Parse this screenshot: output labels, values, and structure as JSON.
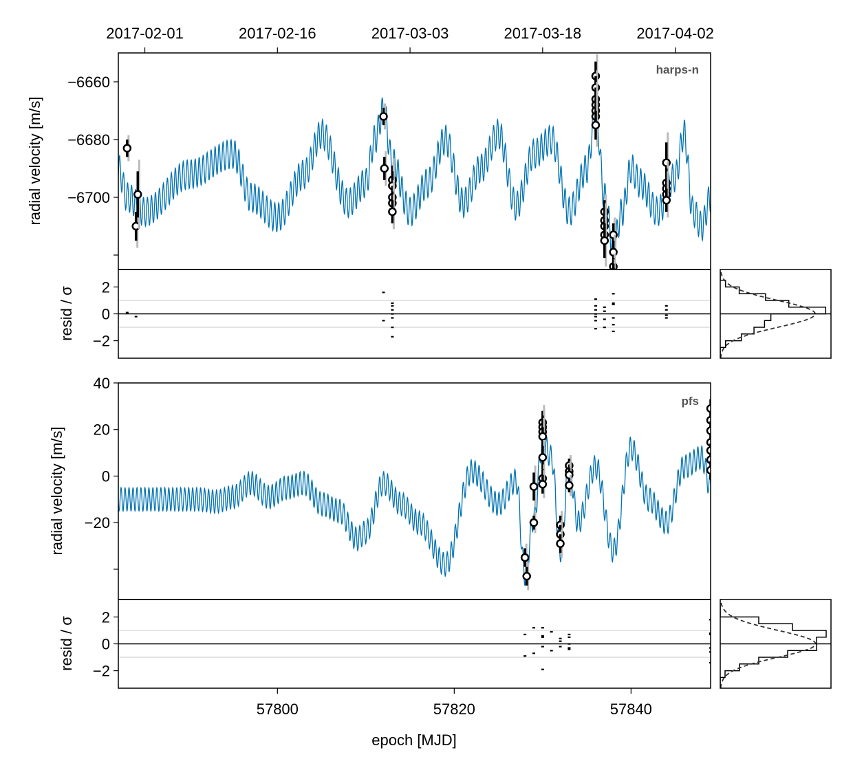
{
  "colors": {
    "model": "#0072B2",
    "data_edge": "#000000",
    "data_fill": "#ffffff",
    "errorbar_jitter": "#bbbbbb",
    "gridline": "#c8c8c8",
    "hist_curve": "#333333"
  },
  "chart_data": [
    {
      "type": "line",
      "panel": "rv-harps-n",
      "instrument": "harps-n",
      "ylabel": "radial velocity [m/s]",
      "xlim": [
        57782,
        57849
      ],
      "ylim": [
        -6725,
        -6650
      ],
      "yticks": [
        -6660,
        -6680,
        -6700
      ],
      "top_axis_dates": [
        "2017-02-01",
        "2017-02-16",
        "2017-03-03",
        "2017-03-18",
        "2017-04-02"
      ],
      "top_axis_mjd": [
        57785,
        57800,
        57815,
        57830,
        57845
      ],
      "model": {
        "baseline": -6694,
        "keypoints_x": [
          57782,
          57783,
          57785,
          57790,
          57795,
          57797,
          57800,
          57803,
          57805,
          57808,
          57810,
          57811,
          57812,
          57813,
          57815,
          57817,
          57819,
          57821,
          57823,
          57825,
          57827,
          57829,
          57831,
          57833,
          57835,
          57836,
          57837,
          57838,
          57839,
          57840,
          57841,
          57843,
          57845,
          57846,
          57847,
          57848,
          57849
        ],
        "keypoints_y": [
          -6690,
          -6700,
          -6705,
          -6692,
          -6685,
          -6700,
          -6707,
          -6692,
          -6678,
          -6702,
          -6695,
          -6680,
          -6670,
          -6688,
          -6705,
          -6695,
          -6680,
          -6702,
          -6690,
          -6678,
          -6703,
          -6685,
          -6680,
          -6705,
          -6690,
          -6670,
          -6700,
          -6717,
          -6705,
          -6690,
          -6695,
          -6705,
          -6693,
          -6678,
          -6705,
          -6710,
          -6700
        ],
        "osc_amplitude": 5,
        "osc_period": 0.45
      },
      "points": [
        {
          "x": 57783,
          "y": -6683,
          "err": 3
        },
        {
          "x": 57784,
          "y": -6710,
          "err": 5
        },
        {
          "x": 57784.2,
          "y": -6699,
          "err": 8
        },
        {
          "x": 57812,
          "y": -6672,
          "err": 3
        },
        {
          "x": 57812.1,
          "y": -6690,
          "err": 4
        },
        {
          "x": 57813,
          "y": -6694,
          "err": 5
        },
        {
          "x": 57813,
          "y": -6696,
          "err": 5
        },
        {
          "x": 57813,
          "y": -6700,
          "err": 4
        },
        {
          "x": 57813,
          "y": -6702,
          "err": 4
        },
        {
          "x": 57813,
          "y": -6705,
          "err": 4
        },
        {
          "x": 57836,
          "y": -6658,
          "err": 5
        },
        {
          "x": 57836,
          "y": -6662,
          "err": 4
        },
        {
          "x": 57836,
          "y": -6666,
          "err": 4
        },
        {
          "x": 57836,
          "y": -6668,
          "err": 4
        },
        {
          "x": 57836,
          "y": -6670,
          "err": 4
        },
        {
          "x": 57836,
          "y": -6672,
          "err": 4
        },
        {
          "x": 57836,
          "y": -6675,
          "err": 5
        },
        {
          "x": 57837,
          "y": -6705,
          "err": 4
        },
        {
          "x": 57837,
          "y": -6708,
          "err": 4
        },
        {
          "x": 57837,
          "y": -6710,
          "err": 4
        },
        {
          "x": 57837,
          "y": -6713,
          "err": 5
        },
        {
          "x": 57837,
          "y": -6715,
          "err": 6
        },
        {
          "x": 57838,
          "y": -6713,
          "err": 4
        },
        {
          "x": 57838,
          "y": -6719,
          "err": 4
        },
        {
          "x": 57838,
          "y": -6724,
          "err": 3
        },
        {
          "x": 57838,
          "y": -6726,
          "err": 3
        },
        {
          "x": 57844,
          "y": -6688,
          "err": 7
        },
        {
          "x": 57844,
          "y": -6695,
          "err": 5
        },
        {
          "x": 57844,
          "y": -6697,
          "err": 4
        },
        {
          "x": 57844,
          "y": -6699,
          "err": 4
        },
        {
          "x": 57844,
          "y": -6701,
          "err": 4
        }
      ]
    },
    {
      "type": "scatter",
      "panel": "resid-harps-n",
      "ylabel": "resid / σ",
      "xlim": [
        57782,
        57849
      ],
      "ylim": [
        -3.3,
        3.3
      ],
      "yticks": [
        2,
        0,
        -2
      ],
      "gridlines": [
        1,
        -1
      ],
      "points": [
        {
          "x": 57783,
          "y": 0.1
        },
        {
          "x": 57784,
          "y": -0.2
        },
        {
          "x": 57812,
          "y": 1.6
        },
        {
          "x": 57812,
          "y": -0.5
        },
        {
          "x": 57813,
          "y": 0.8
        },
        {
          "x": 57813,
          "y": 0.6
        },
        {
          "x": 57813,
          "y": 0.3
        },
        {
          "x": 57813,
          "y": 0.0
        },
        {
          "x": 57813,
          "y": -0.3
        },
        {
          "x": 57813,
          "y": -1.0
        },
        {
          "x": 57813,
          "y": -1.7
        },
        {
          "x": 57836,
          "y": 1.1
        },
        {
          "x": 57836,
          "y": 0.6
        },
        {
          "x": 57836,
          "y": 0.3
        },
        {
          "x": 57836,
          "y": 0.0
        },
        {
          "x": 57836,
          "y": -0.2
        },
        {
          "x": 57836,
          "y": -0.5
        },
        {
          "x": 57836,
          "y": -1.1
        },
        {
          "x": 57837,
          "y": 0.5
        },
        {
          "x": 57837,
          "y": 0.2
        },
        {
          "x": 57837,
          "y": -0.4
        },
        {
          "x": 57837,
          "y": -1.0
        },
        {
          "x": 57838,
          "y": 1.5
        },
        {
          "x": 57838,
          "y": 0.8
        },
        {
          "x": 57838,
          "y": 0.7
        },
        {
          "x": 57838,
          "y": -0.3
        },
        {
          "x": 57838,
          "y": -0.8
        },
        {
          "x": 57838,
          "y": -1.3
        },
        {
          "x": 57844,
          "y": 0.6
        },
        {
          "x": 57844,
          "y": 0.3
        },
        {
          "x": 57844,
          "y": -0.1
        },
        {
          "x": 57844,
          "y": -0.3
        }
      ]
    },
    {
      "type": "bar",
      "panel": "hist-harps-n",
      "orientation": "horizontal",
      "bin_edges": [
        -3,
        -2.5,
        -2,
        -1.5,
        -1,
        -0.5,
        0,
        0.5,
        1,
        1.5,
        2,
        2.5,
        3
      ],
      "counts": [
        0,
        0.5,
        2,
        3.2,
        4.2,
        4.8,
        10,
        6.5,
        4.3,
        1.8,
        0.5,
        0
      ],
      "xlim": [
        0,
        10.5
      ],
      "ylim": [
        -3.3,
        3.3
      ]
    },
    {
      "type": "line",
      "panel": "rv-pfs",
      "instrument": "pfs",
      "ylabel": "radial velocity [m/s]",
      "xlabel": "",
      "xlim": [
        57782,
        57849
      ],
      "ylim": [
        -53,
        40
      ],
      "yticks": [
        40,
        20,
        0,
        -20
      ],
      "model": {
        "baseline": -10,
        "keypoints_x": [
          57782,
          57791,
          57793,
          57795,
          57797,
          57799,
          57801,
          57803,
          57805,
          57807,
          57809,
          57810,
          57812,
          57814,
          57816,
          57819,
          57822,
          57825,
          57827,
          57828,
          57829,
          57830,
          57831,
          57832,
          57833,
          57834,
          57836,
          57838,
          57840,
          57842,
          57844,
          57846,
          57848,
          57849
        ],
        "keypoints_y": [
          -10,
          -10,
          -11,
          -9,
          -3,
          -9,
          -5,
          -3,
          -12,
          -15,
          -27,
          -24,
          -3,
          -12,
          -20,
          -38,
          2,
          -12,
          -2,
          -42,
          -18,
          15,
          8,
          -32,
          4,
          -20,
          4,
          -32,
          12,
          -10,
          -20,
          4,
          8,
          -5
        ],
        "osc_amplitude": 5,
        "osc_period": 0.45
      },
      "points": [
        {
          "x": 57828,
          "y": -35,
          "err": 4
        },
        {
          "x": 57828.2,
          "y": -43,
          "err": 4
        },
        {
          "x": 57829,
          "y": -4.5,
          "err": 6
        },
        {
          "x": 57829,
          "y": -20,
          "err": 3
        },
        {
          "x": 57830,
          "y": 23,
          "err": 5
        },
        {
          "x": 57830,
          "y": 21,
          "err": 5
        },
        {
          "x": 57830,
          "y": 19,
          "err": 4
        },
        {
          "x": 57830,
          "y": 17,
          "err": 4
        },
        {
          "x": 57830,
          "y": 8,
          "err": 5
        },
        {
          "x": 57830,
          "y": -1,
          "err": 4
        },
        {
          "x": 57830,
          "y": -3.5,
          "err": 4
        },
        {
          "x": 57832,
          "y": -21,
          "err": 4
        },
        {
          "x": 57832,
          "y": -25,
          "err": 4
        },
        {
          "x": 57832,
          "y": -29,
          "err": 4
        },
        {
          "x": 57833,
          "y": 4.5,
          "err": 3
        },
        {
          "x": 57833,
          "y": 2,
          "err": 3
        },
        {
          "x": 57833,
          "y": 0.5,
          "err": 3
        },
        {
          "x": 57833,
          "y": -4,
          "err": 3
        },
        {
          "x": 57849,
          "y": 29,
          "err": 4
        },
        {
          "x": 57849,
          "y": 24,
          "err": 4
        },
        {
          "x": 57849,
          "y": 19.5,
          "err": 4
        },
        {
          "x": 57849,
          "y": 14.5,
          "err": 3
        },
        {
          "x": 57849,
          "y": 11,
          "err": 3
        },
        {
          "x": 57849,
          "y": 7,
          "err": 3
        },
        {
          "x": 57849,
          "y": 2.5,
          "err": 4
        }
      ]
    },
    {
      "type": "scatter",
      "panel": "resid-pfs",
      "ylabel": "resid / σ",
      "xlabel": "epoch [MJD]",
      "xlim": [
        57782,
        57849
      ],
      "xticks": [
        57800,
        57820,
        57840
      ],
      "ylim": [
        -3.3,
        3.3
      ],
      "yticks": [
        2,
        0,
        -2
      ],
      "gridlines": [
        1,
        -1
      ],
      "points": [
        {
          "x": 57828,
          "y": 0.7
        },
        {
          "x": 57828,
          "y": -0.9
        },
        {
          "x": 57829,
          "y": 1.2
        },
        {
          "x": 57829,
          "y": -0.7
        },
        {
          "x": 57830,
          "y": 1.2
        },
        {
          "x": 57830,
          "y": 0.6
        },
        {
          "x": 57830,
          "y": 0.5
        },
        {
          "x": 57830,
          "y": -0.2
        },
        {
          "x": 57830,
          "y": -1.9
        },
        {
          "x": 57831,
          "y": 0.9
        },
        {
          "x": 57831,
          "y": -0.5
        },
        {
          "x": 57832,
          "y": 0.4
        },
        {
          "x": 57832,
          "y": 0.2
        },
        {
          "x": 57832,
          "y": -0.2
        },
        {
          "x": 57833,
          "y": 0.7
        },
        {
          "x": 57833,
          "y": 0.5
        },
        {
          "x": 57833,
          "y": 0.0
        },
        {
          "x": 57833,
          "y": -0.3
        },
        {
          "x": 57833,
          "y": -0.4
        },
        {
          "x": 57849,
          "y": 1.8
        },
        {
          "x": 57849,
          "y": 0.8
        },
        {
          "x": 57849,
          "y": 0.7
        },
        {
          "x": 57849,
          "y": -0.3
        },
        {
          "x": 57849,
          "y": -0.6
        },
        {
          "x": 57849,
          "y": -1.4
        }
      ]
    },
    {
      "type": "bar",
      "panel": "hist-pfs",
      "orientation": "horizontal",
      "bin_edges": [
        -3,
        -2.5,
        -2,
        -1.5,
        -1,
        -0.5,
        0,
        0.5,
        1,
        1.5,
        2,
        2.5,
        3
      ],
      "counts": [
        0,
        0.5,
        2,
        4,
        7,
        10,
        10,
        11,
        7.5,
        4,
        0,
        0
      ],
      "xlim": [
        0,
        11.5
      ],
      "ylim": [
        -3.3,
        3.3
      ]
    }
  ]
}
